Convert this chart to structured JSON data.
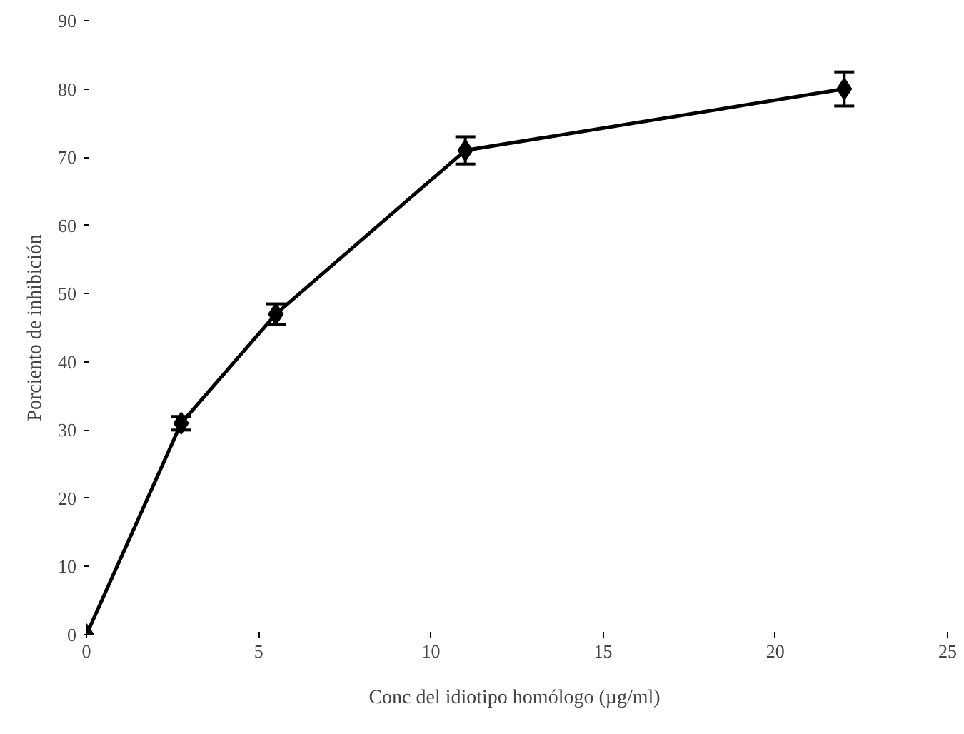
{
  "chart_data": {
    "type": "line",
    "xlabel": "Conc  del idiotipo homólogo (µg/ml)",
    "ylabel": "Porciento de inhibición",
    "x": [
      0,
      2.75,
      5.5,
      11,
      22
    ],
    "series": [
      {
        "color": "#000000",
        "values": [
          0,
          31,
          47,
          71,
          80
        ],
        "errors": [
          null,
          1,
          1.5,
          2,
          2.5
        ]
      }
    ],
    "xlim": [
      0,
      25
    ],
    "xticks": [
      0,
      5,
      10,
      15,
      20,
      25
    ],
    "ylim": [
      0,
      90
    ],
    "yticks": [
      0,
      10,
      20,
      30,
      40,
      50,
      60,
      70,
      80,
      90
    ],
    "marker": "diamond",
    "line_style": "solid",
    "grid": false
  }
}
